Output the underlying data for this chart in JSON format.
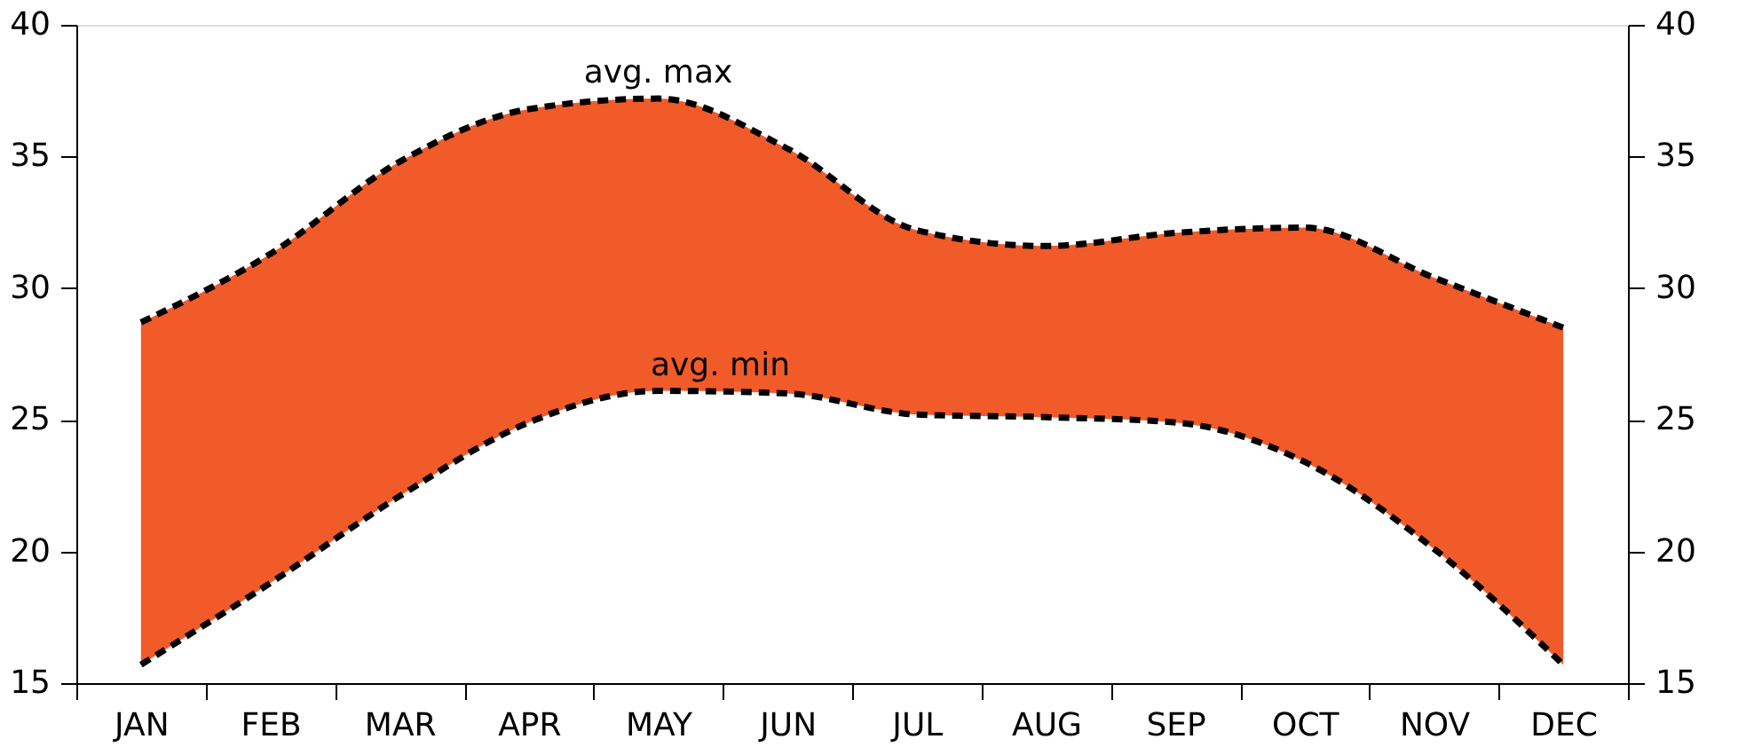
{
  "chart_data": {
    "type": "line",
    "categories": [
      "JAN",
      "FEB",
      "MAR",
      "APR",
      "MAY",
      "JUN",
      "JUL",
      "AUG",
      "SEP",
      "OCT",
      "NOV",
      "DEC"
    ],
    "series": [
      {
        "name": "avg. max",
        "color": "#000000",
        "values": [
          28.7,
          31.3,
          34.8,
          36.8,
          37.2,
          35.3,
          32.2,
          31.6,
          32.1,
          32.3,
          30.4,
          28.5
        ],
        "lower": [
          15.7,
          18.8,
          22.1,
          24.9,
          26.1,
          26.0,
          25.2,
          25.1,
          24.9,
          23.4,
          20.1,
          15.7
        ],
        "upper": [
          28.7,
          31.3,
          34.8,
          36.8,
          37.2,
          35.3,
          32.2,
          31.6,
          32.1,
          32.3,
          30.4,
          28.5
        ]
      },
      {
        "name": "avg. min",
        "color": "#000000",
        "values": [
          15.7,
          18.8,
          22.1,
          24.9,
          26.1,
          26.0,
          25.2,
          25.1,
          24.9,
          23.4,
          20.1,
          15.7
        ]
      }
    ],
    "line_style": "dashed",
    "marker": "none",
    "grid": false,
    "legend": false,
    "ylim": [
      15,
      40
    ],
    "yticks": [
      15,
      20,
      25,
      30,
      35,
      40
    ],
    "y2lim": [
      15,
      40
    ],
    "y2ticks": [
      15,
      20,
      25,
      30,
      35,
      40
    ]
  }
}
